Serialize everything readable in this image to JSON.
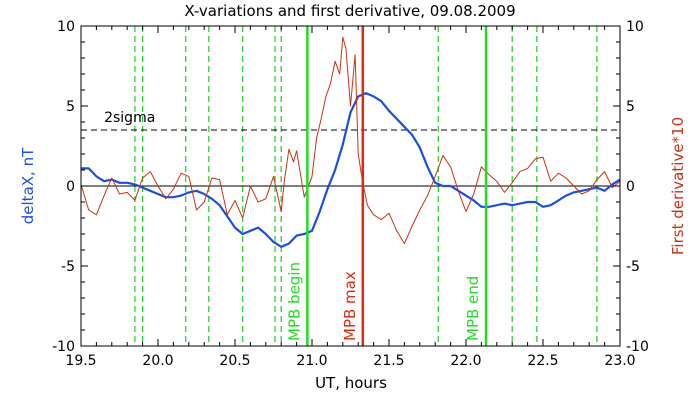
{
  "chart_data": {
    "type": "line",
    "title": "X-variations and first derivative, 09.08.2009",
    "xlabel": "UT, hours",
    "ylabel_left": "deltaX, nT",
    "ylabel_right": "First derivative*10",
    "xlim": [
      19.5,
      23.0
    ],
    "ylim": [
      -10,
      10
    ],
    "xticks": [
      "19.5",
      "20.0",
      "20.5",
      "21.0",
      "21.5",
      "22.0",
      "22.5",
      "23.0"
    ],
    "yticks_left": [
      "-10",
      "-5",
      "0",
      "5",
      "10"
    ],
    "yticks_right": [
      "-10",
      "-5",
      "0",
      "5",
      "10"
    ],
    "zero_line": 0,
    "threshold": {
      "label": "2sigma",
      "value": 3.5,
      "style": "dashed"
    },
    "colors": {
      "deltaX": "#1a50dc",
      "derivative": "#c83214",
      "mpb_green": "#22dd22",
      "mpb_red": "#dd2a10",
      "dashed_green": "#22cc22",
      "axis": "#000000"
    },
    "dashed_markers": [
      19.85,
      19.9,
      20.18,
      20.33,
      20.55,
      20.76,
      20.8,
      21.82,
      22.3,
      22.46,
      22.85
    ],
    "event_lines": [
      {
        "label": "MPB begin",
        "x": 20.97,
        "color": "#22dd22"
      },
      {
        "label": "MPB max",
        "x": 21.33,
        "color": "#dd2a10"
      },
      {
        "label": "MPB end",
        "x": 22.13,
        "color": "#22dd22"
      }
    ],
    "series": [
      {
        "name": "deltaX, nT",
        "color": "#1a50dc",
        "x": [
          19.5,
          19.55,
          19.6,
          19.65,
          19.7,
          19.75,
          19.8,
          19.85,
          19.9,
          19.95,
          20.0,
          20.05,
          20.1,
          20.15,
          20.2,
          20.25,
          20.3,
          20.35,
          20.4,
          20.45,
          20.5,
          20.55,
          20.6,
          20.65,
          20.7,
          20.75,
          20.8,
          20.85,
          20.9,
          20.95,
          21.0,
          21.05,
          21.1,
          21.15,
          21.2,
          21.25,
          21.3,
          21.35,
          21.4,
          21.45,
          21.5,
          21.55,
          21.6,
          21.65,
          21.7,
          21.75,
          21.8,
          21.85,
          21.9,
          21.95,
          22.0,
          22.05,
          22.1,
          22.15,
          22.2,
          22.25,
          22.3,
          22.35,
          22.4,
          22.45,
          22.5,
          22.55,
          22.6,
          22.65,
          22.7,
          22.75,
          22.8,
          22.85,
          22.9,
          22.95,
          23.0
        ],
        "y": [
          1.1,
          1.1,
          0.6,
          0.3,
          0.4,
          0.2,
          0.2,
          0.1,
          -0.1,
          -0.3,
          -0.5,
          -0.7,
          -0.7,
          -0.6,
          -0.4,
          -0.3,
          -0.5,
          -0.8,
          -1.2,
          -1.9,
          -2.6,
          -3.0,
          -2.8,
          -2.6,
          -3.0,
          -3.5,
          -3.8,
          -3.6,
          -3.1,
          -3.0,
          -2.8,
          -1.6,
          -0.2,
          1.0,
          2.6,
          4.6,
          5.6,
          5.8,
          5.6,
          5.3,
          4.7,
          4.2,
          3.7,
          3.2,
          2.4,
          1.2,
          0.2,
          0.0,
          0.0,
          -0.3,
          -0.6,
          -0.9,
          -1.3,
          -1.3,
          -1.2,
          -1.1,
          -1.2,
          -1.1,
          -1.0,
          -1.0,
          -1.3,
          -1.2,
          -0.9,
          -0.6,
          -0.4,
          -0.3,
          -0.2,
          -0.1,
          -0.3,
          0.1,
          0.4
        ]
      },
      {
        "name": "First derivative*10",
        "color": "#c83214",
        "x": [
          19.5,
          19.55,
          19.6,
          19.65,
          19.7,
          19.75,
          19.8,
          19.85,
          19.9,
          19.95,
          20.0,
          20.05,
          20.1,
          20.15,
          20.2,
          20.25,
          20.3,
          20.35,
          20.4,
          20.45,
          20.5,
          20.55,
          20.6,
          20.65,
          20.7,
          20.75,
          20.8,
          20.82,
          20.85,
          20.88,
          20.9,
          20.95,
          21.0,
          21.03,
          21.06,
          21.09,
          21.12,
          21.15,
          21.18,
          21.2,
          21.22,
          21.25,
          21.28,
          21.3,
          21.33,
          21.36,
          21.4,
          21.45,
          21.5,
          21.55,
          21.6,
          21.65,
          21.7,
          21.75,
          21.8,
          21.85,
          21.9,
          21.95,
          22.0,
          22.05,
          22.1,
          22.15,
          22.2,
          22.25,
          22.3,
          22.35,
          22.4,
          22.45,
          22.5,
          22.55,
          22.6,
          22.65,
          22.7,
          22.75,
          22.8,
          22.85,
          22.9,
          22.95,
          23.0
        ],
        "y": [
          0.1,
          -1.5,
          -1.8,
          -0.6,
          0.5,
          -0.5,
          -0.4,
          -0.9,
          0.5,
          0.9,
          0.0,
          -0.8,
          -0.2,
          0.8,
          0.6,
          -1.5,
          -1.0,
          0.5,
          0.4,
          -1.8,
          -0.9,
          -2.0,
          0.0,
          -1.0,
          -0.8,
          0.6,
          -1.6,
          0.3,
          2.3,
          1.5,
          2.2,
          -0.7,
          0.6,
          3.0,
          4.2,
          5.6,
          6.4,
          7.8,
          7.0,
          9.3,
          8.6,
          5.0,
          8.2,
          2.0,
          0.2,
          -1.2,
          -1.8,
          -2.1,
          -1.7,
          -2.8,
          -3.6,
          -2.5,
          -1.5,
          -0.6,
          0.6,
          1.9,
          1.2,
          -0.3,
          -1.6,
          -0.5,
          1.2,
          0.7,
          0.3,
          -0.4,
          0.2,
          0.9,
          1.1,
          1.7,
          1.8,
          0.3,
          0.8,
          0.5,
          0.0,
          -0.5,
          -0.3,
          0.4,
          0.9,
          -0.1,
          0.3
        ]
      }
    ]
  }
}
